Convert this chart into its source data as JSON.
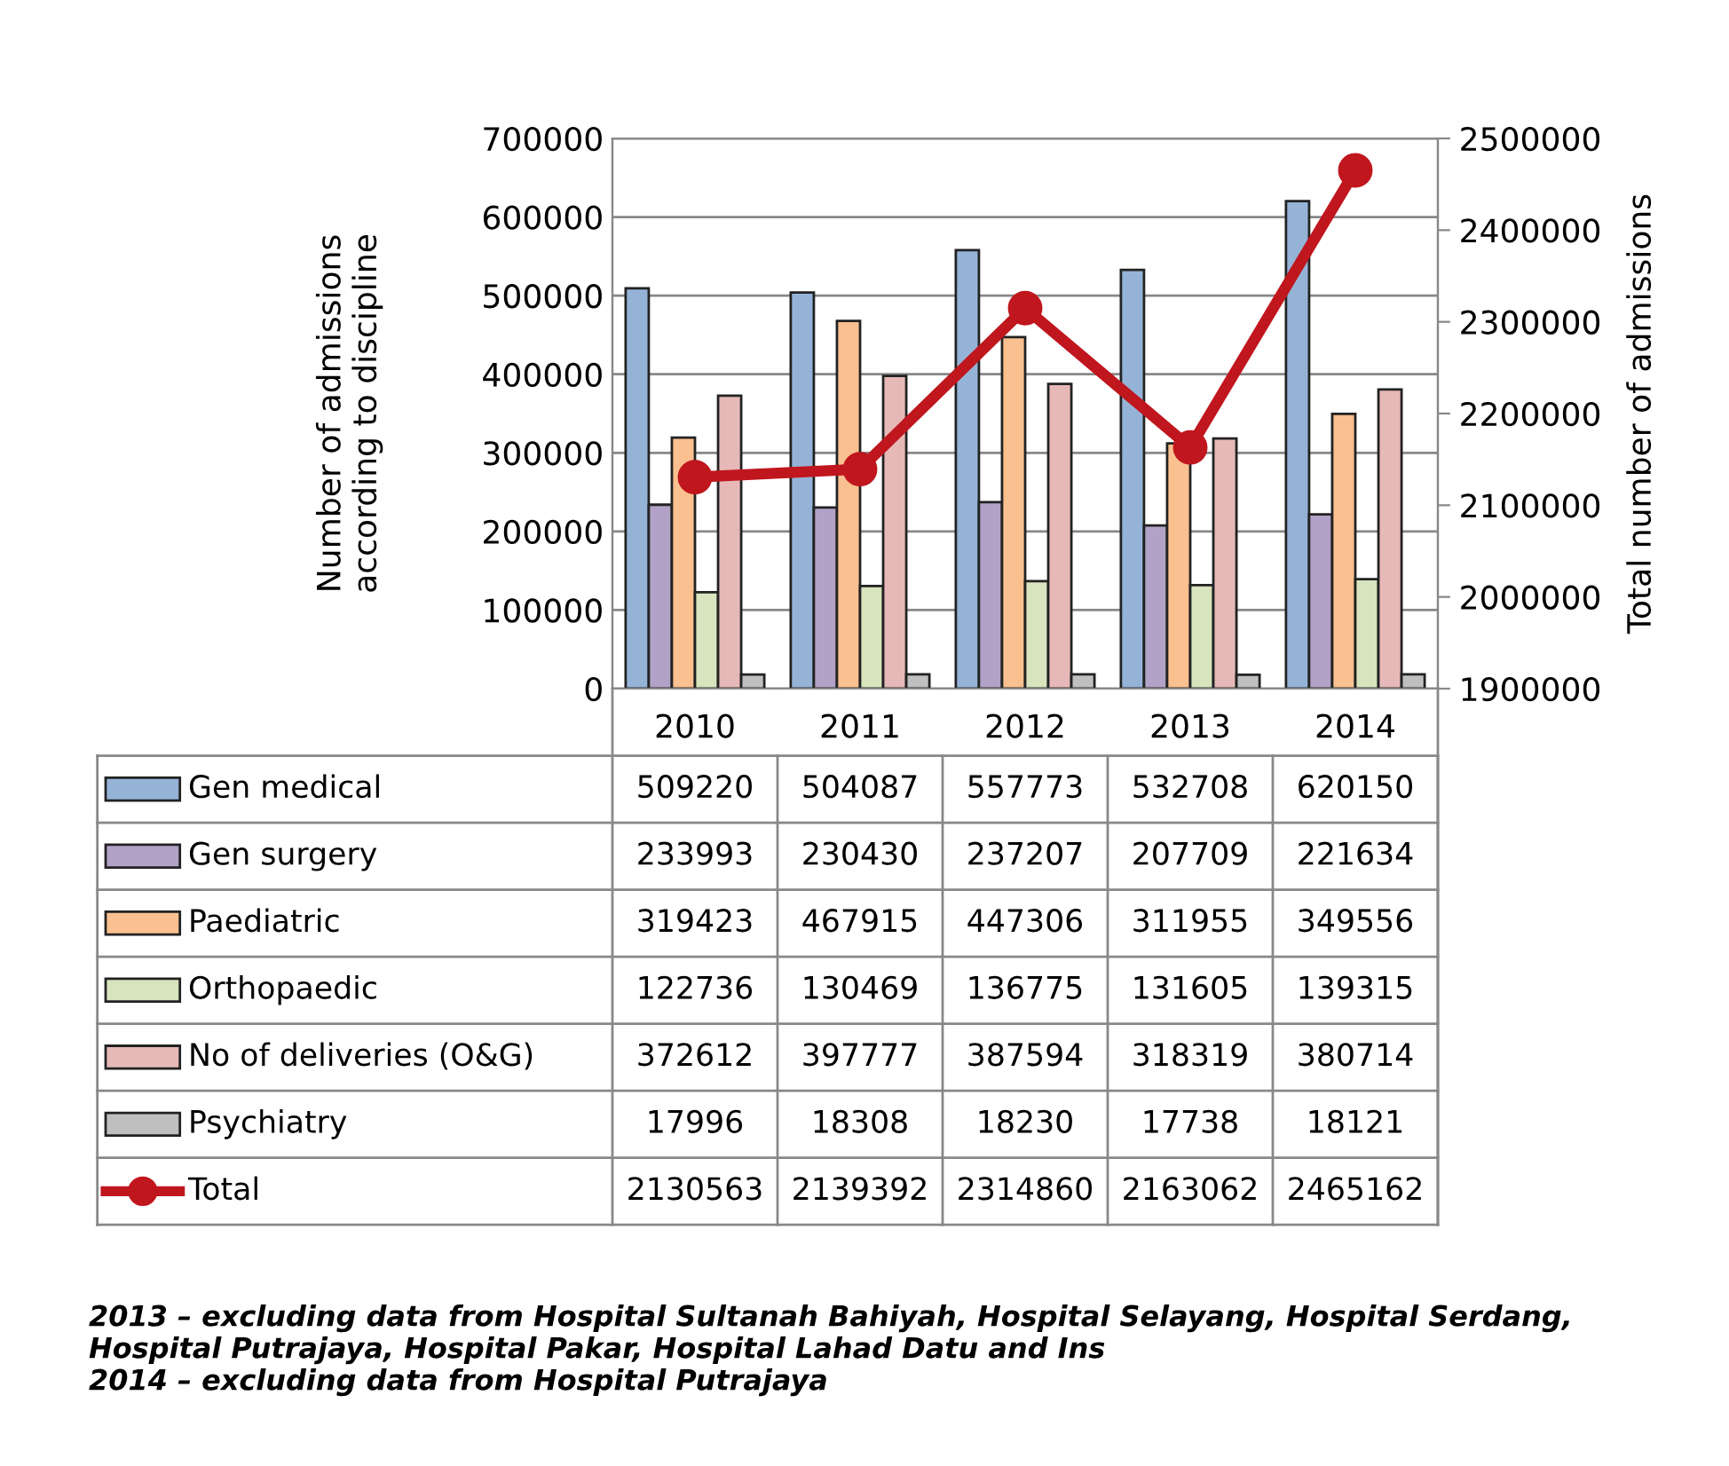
{
  "chart_data": {
    "type": "bar",
    "categories": [
      "2010",
      "2011",
      "2012",
      "2013",
      "2014"
    ],
    "ylabel": "Number of admissions\naccording to discipline",
    "y2label": "Total number of admissions",
    "ylim": [
      0,
      700000
    ],
    "yticks": [
      0,
      100000,
      200000,
      300000,
      400000,
      500000,
      600000,
      700000
    ],
    "y2lim": [
      1900000,
      2500000
    ],
    "y2ticks": [
      1900000,
      2000000,
      2100000,
      2200000,
      2300000,
      2400000,
      2500000
    ],
    "grid": "y",
    "legend": "bottom",
    "data_labels": true,
    "series": [
      {
        "name": "Gen medical",
        "color": "#95b3d7",
        "values": [
          509220,
          504087,
          557773,
          532708,
          620150
        ]
      },
      {
        "name": "Gen surgery",
        "color": "#b3a2c7",
        "values": [
          233993,
          230430,
          237207,
          207709,
          221634
        ]
      },
      {
        "name": "Paediatric",
        "color": "#fac090",
        "values": [
          319423,
          467915,
          447306,
          311955,
          349556
        ]
      },
      {
        "name": "Orthopaedic",
        "color": "#d7e4bd",
        "values": [
          122736,
          130469,
          136775,
          131605,
          139315
        ]
      },
      {
        "name": "No of deliveries (O&G)",
        "color": "#e6b9b8",
        "values": [
          372612,
          397777,
          387594,
          318319,
          380714
        ]
      },
      {
        "name": "Psychiatry",
        "color": "#bfbfbf",
        "values": [
          17996,
          18308,
          18230,
          17738,
          18121
        ]
      },
      {
        "name": "Total",
        "type": "line",
        "axis": "y2",
        "color": "#c0161d",
        "marker": "circle",
        "line_style": "solid",
        "values": [
          2130563,
          2139392,
          2314860,
          2163062,
          2465162
        ]
      }
    ],
    "annotations": [
      "2013 – excluding data from Hospital Sultanah Bahiyah, Hospital Selayang, Hospital Serdang,\nHospital Putrajaya, Hospital Pakar, Hospital Lahad Datu and Ins\n2014 – excluding data from Hospital Putrajaya"
    ]
  }
}
